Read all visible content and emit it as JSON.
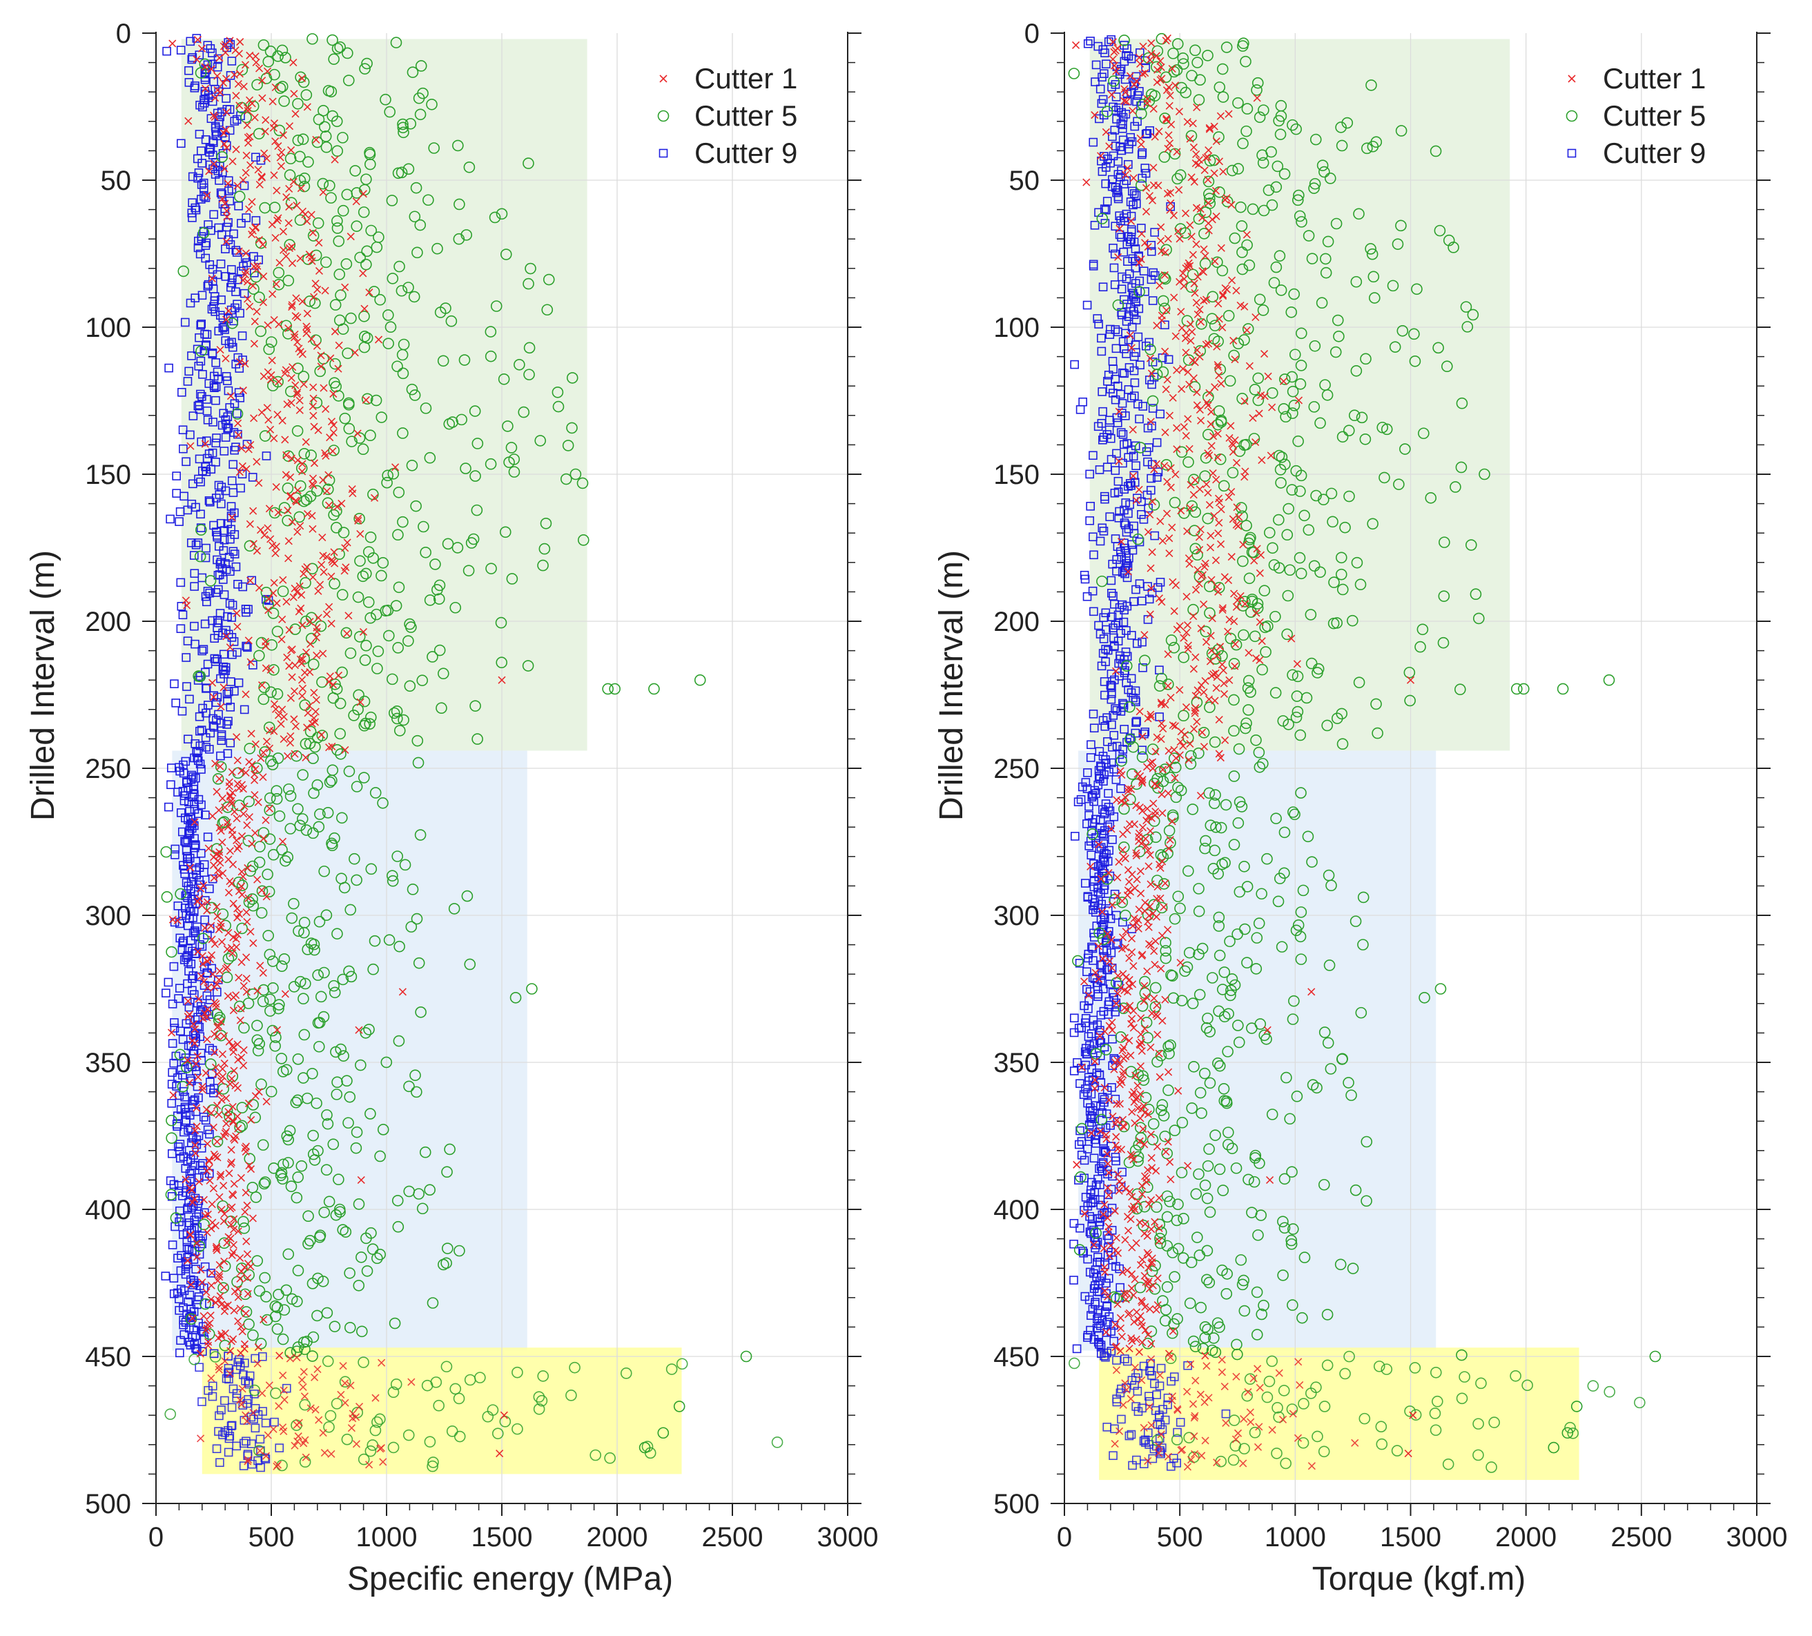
{
  "colors": {
    "cutter1": "#e8292b",
    "cutter5": "#2ca02c",
    "cutter9": "#1f1fe0",
    "zone_upper": "#e8f3e2",
    "zone_middle": "#e6f0fa",
    "zone_lower": "#ffff9e",
    "grid": "#dcdcdc",
    "axis": "#222222"
  },
  "chart_data": [
    {
      "type": "scatter",
      "xlabel": "Specific energy (MPa)",
      "ylabel": "Drilled Interval (m)",
      "xlim": [
        0,
        3000
      ],
      "ylim": [
        0,
        500
      ],
      "y_inverted": true,
      "xticks": [
        "0",
        "500",
        "1000",
        "1500",
        "2000",
        "2500",
        "3000"
      ],
      "yticks": [
        "0",
        "50",
        "100",
        "150",
        "200",
        "250",
        "300",
        "350",
        "400",
        "450",
        "500"
      ],
      "grid": true,
      "legend": "top-right",
      "zones": [
        {
          "name": "upper",
          "x": [
            110,
            1870
          ],
          "y": [
            2,
            244
          ]
        },
        {
          "name": "middle",
          "x": [
            70,
            1610
          ],
          "y": [
            244,
            448
          ]
        },
        {
          "name": "lower",
          "x": [
            200,
            2280
          ],
          "y": [
            447,
            490
          ]
        }
      ],
      "series": [
        {
          "name": "Cutter 1",
          "marker": "x",
          "profile": [
            [
              2,
              300,
              110
            ],
            [
              40,
              480,
              140
            ],
            [
              100,
              580,
              150
            ],
            [
              150,
              620,
              160
            ],
            [
              200,
              600,
              160
            ],
            [
              244,
              560,
              150
            ],
            [
              250,
              360,
              70
            ],
            [
              300,
              300,
              80
            ],
            [
              350,
              290,
              90
            ],
            [
              400,
              280,
              80
            ],
            [
              448,
              290,
              70
            ],
            [
              452,
              600,
              220
            ],
            [
              488,
              620,
              230
            ]
          ],
          "outliers": [
            [
              1500,
              220
            ],
            [
              1070,
              326
            ],
            [
              880,
              339
            ],
            [
              890,
              390
            ],
            [
              1490,
              483
            ],
            [
              1510,
              470
            ]
          ]
        },
        {
          "name": "Cutter 5",
          "marker": "o",
          "profile": [
            [
              2,
              500,
              200
            ],
            [
              40,
              780,
              250
            ],
            [
              100,
              850,
              280
            ],
            [
              150,
              880,
              300
            ],
            [
              200,
              850,
              280
            ],
            [
              244,
              800,
              260
            ],
            [
              250,
              480,
              140
            ],
            [
              300,
              600,
              240
            ],
            [
              350,
              580,
              260
            ],
            [
              400,
              600,
              240
            ],
            [
              448,
              520,
              170
            ],
            [
              452,
              1100,
              480
            ],
            [
              488,
              1050,
              500
            ]
          ],
          "outliers": [
            [
              2360,
              220
            ],
            [
              2160,
              223
            ],
            [
              1990,
              223
            ],
            [
              1960,
              223
            ],
            [
              1820,
              150
            ],
            [
              1630,
              325
            ],
            [
              1560,
              328
            ],
            [
              2560,
              450
            ],
            [
              2270,
              467
            ],
            [
              2200,
              476
            ],
            [
              2120,
              481
            ],
            [
              1620,
              107
            ]
          ]
        },
        {
          "name": "Cutter 9",
          "marker": "s",
          "profile": [
            [
              2,
              230,
              60
            ],
            [
              40,
              260,
              70
            ],
            [
              100,
              270,
              75
            ],
            [
              150,
              270,
              80
            ],
            [
              200,
              260,
              75
            ],
            [
              244,
              240,
              60
            ],
            [
              250,
              150,
              40
            ],
            [
              300,
              160,
              45
            ],
            [
              350,
              150,
              50
            ],
            [
              400,
              150,
              45
            ],
            [
              448,
              150,
              40
            ],
            [
              452,
              360,
              90
            ],
            [
              488,
              380,
              90
            ]
          ],
          "outliers": []
        }
      ]
    },
    {
      "type": "scatter",
      "xlabel": "Torque (kgf.m)",
      "ylabel": "Drilled Interval (m)",
      "xlim": [
        0,
        3000
      ],
      "ylim": [
        0,
        500
      ],
      "y_inverted": true,
      "xticks": [
        "0",
        "500",
        "1000",
        "1500",
        "2000",
        "2500",
        "3000"
      ],
      "yticks": [
        "0",
        "50",
        "100",
        "150",
        "200",
        "250",
        "300",
        "350",
        "400",
        "450",
        "500"
      ],
      "grid": true,
      "legend": "top-right",
      "zones": [
        {
          "name": "upper",
          "x": [
            110,
            1930
          ],
          "y": [
            2,
            244
          ]
        },
        {
          "name": "middle",
          "x": [
            60,
            1610
          ],
          "y": [
            244,
            448
          ]
        },
        {
          "name": "lower",
          "x": [
            150,
            2230
          ],
          "y": [
            447,
            492
          ]
        }
      ],
      "series": [
        {
          "name": "Cutter 1",
          "marker": "x",
          "profile": [
            [
              2,
              300,
              110
            ],
            [
              40,
              480,
              140
            ],
            [
              100,
              580,
              150
            ],
            [
              150,
              620,
              160
            ],
            [
              200,
              600,
              160
            ],
            [
              244,
              560,
              150
            ],
            [
              250,
              360,
              70
            ],
            [
              300,
              300,
              80
            ],
            [
              350,
              290,
              90
            ],
            [
              400,
              280,
              80
            ],
            [
              448,
              290,
              70
            ],
            [
              452,
              600,
              220
            ],
            [
              488,
              620,
              230
            ]
          ],
          "outliers": [
            [
              1500,
              220
            ],
            [
              1070,
              326
            ],
            [
              880,
              339
            ],
            [
              890,
              390
            ],
            [
              1490,
              483
            ],
            [
              1510,
              470
            ]
          ]
        },
        {
          "name": "Cutter 5",
          "marker": "o",
          "profile": [
            [
              2,
              500,
              200
            ],
            [
              40,
              780,
              250
            ],
            [
              100,
              850,
              280
            ],
            [
              150,
              880,
              300
            ],
            [
              200,
              850,
              280
            ],
            [
              244,
              800,
              260
            ],
            [
              250,
              480,
              140
            ],
            [
              300,
              600,
              240
            ],
            [
              350,
              580,
              260
            ],
            [
              400,
              600,
              240
            ],
            [
              448,
              520,
              170
            ],
            [
              452,
              1100,
              480
            ],
            [
              488,
              1050,
              500
            ]
          ],
          "outliers": [
            [
              2360,
              220
            ],
            [
              2160,
              223
            ],
            [
              1990,
              223
            ],
            [
              1960,
              223
            ],
            [
              1820,
              150
            ],
            [
              1630,
              325
            ],
            [
              1560,
              328
            ],
            [
              2560,
              450
            ],
            [
              2220,
              467
            ],
            [
              2180,
              476
            ],
            [
              2120,
              481
            ],
            [
              1620,
              107
            ]
          ]
        },
        {
          "name": "Cutter 9",
          "marker": "s",
          "profile": [
            [
              2,
              230,
              60
            ],
            [
              40,
              260,
              70
            ],
            [
              100,
              270,
              75
            ],
            [
              150,
              270,
              80
            ],
            [
              200,
              260,
              75
            ],
            [
              244,
              240,
              60
            ],
            [
              250,
              150,
              40
            ],
            [
              300,
              160,
              45
            ],
            [
              350,
              150,
              50
            ],
            [
              400,
              150,
              45
            ],
            [
              448,
              150,
              40
            ],
            [
              452,
              360,
              90
            ],
            [
              488,
              380,
              90
            ]
          ],
          "outliers": []
        }
      ]
    }
  ]
}
